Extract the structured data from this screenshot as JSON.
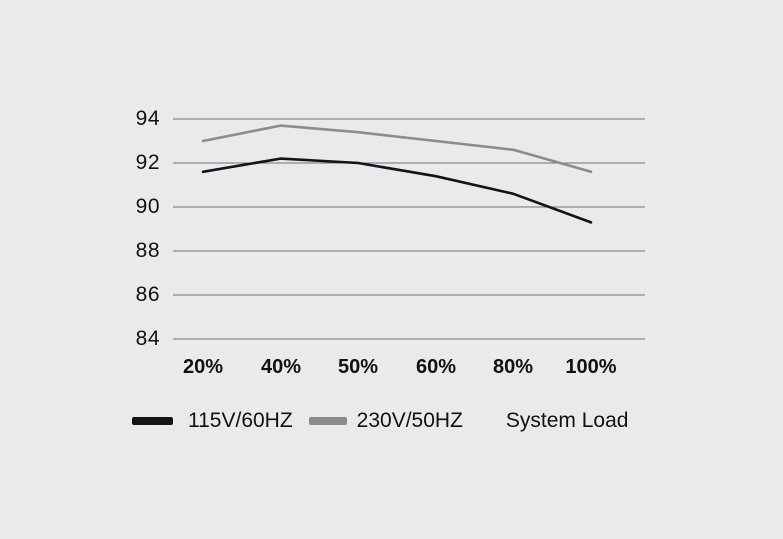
{
  "background_color": "#e9eaeb",
  "text_color": "#111111",
  "gridline_color": "#6f7377",
  "chart_data": {
    "type": "line",
    "title": "",
    "categories": [
      "20%",
      "40%",
      "50%",
      "60%",
      "80%",
      "100%"
    ],
    "series": [
      {
        "name": "115V/60HZ",
        "color": "#141414",
        "values": [
          91.6,
          92.2,
          92.0,
          91.4,
          90.6,
          89.3
        ]
      },
      {
        "name": "230V/50HZ",
        "color": "#8c8c8c",
        "values": [
          93.0,
          93.7,
          93.4,
          93.0,
          92.6,
          91.6
        ]
      }
    ],
    "xlabel": "System Load",
    "ylabel": "",
    "yticks": [
      94,
      92,
      90,
      88,
      86,
      84
    ],
    "ytick_labels": [
      "94",
      "92",
      "90",
      "88",
      "86",
      "84"
    ],
    "ylim": [
      84,
      94
    ],
    "grid": "horizontal",
    "legend_position": "bottom-left"
  }
}
